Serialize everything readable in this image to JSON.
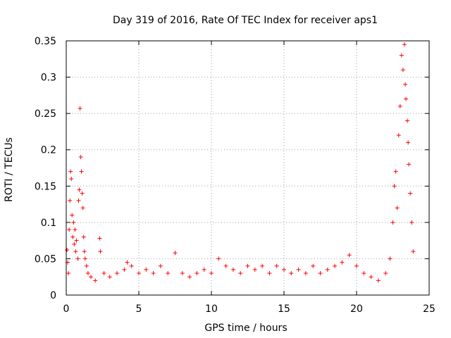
{
  "chart_data": {
    "type": "scatter",
    "title": "Day 319 of 2016, Rate Of TEC Index for receiver aps1",
    "xlabel": "GPS time / hours",
    "ylabel": "ROTI / TECUs",
    "xlim": [
      0,
      25
    ],
    "ylim": [
      0,
      0.35
    ],
    "xticks": [
      "0",
      "5",
      "10",
      "15",
      "20",
      "25"
    ],
    "yticks": [
      "0",
      "0.05",
      "0.1",
      "0.15",
      "0.2",
      "0.25",
      "0.3",
      "0.35"
    ],
    "grid": true,
    "marker": "+",
    "color": "#ff0000",
    "series": [
      {
        "values": [
          [
            0.05,
            0.062
          ],
          [
            0.1,
            0.045
          ],
          [
            0.15,
            0.03
          ],
          [
            0.2,
            0.09
          ],
          [
            0.25,
            0.13
          ],
          [
            0.3,
            0.17
          ],
          [
            0.35,
            0.16
          ],
          [
            0.4,
            0.11
          ],
          [
            0.45,
            0.08
          ],
          [
            0.5,
            0.1
          ],
          [
            0.55,
            0.07
          ],
          [
            0.6,
            0.09
          ],
          [
            0.65,
            0.06
          ],
          [
            0.7,
            0.075
          ],
          [
            0.8,
            0.05
          ],
          [
            0.85,
            0.13
          ],
          [
            0.9,
            0.145
          ],
          [
            0.95,
            0.257
          ],
          [
            1.0,
            0.19
          ],
          [
            1.05,
            0.17
          ],
          [
            1.1,
            0.14
          ],
          [
            1.15,
            0.12
          ],
          [
            1.2,
            0.08
          ],
          [
            1.25,
            0.06
          ],
          [
            1.3,
            0.05
          ],
          [
            1.4,
            0.04
          ],
          [
            1.5,
            0.03
          ],
          [
            1.7,
            0.025
          ],
          [
            2.0,
            0.02
          ],
          [
            2.3,
            0.078
          ],
          [
            2.35,
            0.06
          ],
          [
            2.6,
            0.03
          ],
          [
            3.0,
            0.025
          ],
          [
            3.5,
            0.03
          ],
          [
            4.0,
            0.035
          ],
          [
            4.2,
            0.045
          ],
          [
            4.5,
            0.04
          ],
          [
            5.0,
            0.03
          ],
          [
            5.5,
            0.035
          ],
          [
            6.0,
            0.03
          ],
          [
            6.5,
            0.04
          ],
          [
            7.0,
            0.03
          ],
          [
            7.5,
            0.058
          ],
          [
            8.0,
            0.03
          ],
          [
            8.5,
            0.025
          ],
          [
            9.0,
            0.03
          ],
          [
            9.5,
            0.035
          ],
          [
            10.0,
            0.03
          ],
          [
            10.5,
            0.05
          ],
          [
            11.0,
            0.04
          ],
          [
            11.5,
            0.035
          ],
          [
            12.0,
            0.03
          ],
          [
            12.5,
            0.04
          ],
          [
            13.0,
            0.035
          ],
          [
            13.5,
            0.04
          ],
          [
            14.0,
            0.03
          ],
          [
            14.5,
            0.04
          ],
          [
            15.0,
            0.035
          ],
          [
            15.5,
            0.03
          ],
          [
            16.0,
            0.035
          ],
          [
            16.5,
            0.03
          ],
          [
            17.0,
            0.04
          ],
          [
            17.5,
            0.03
          ],
          [
            18.0,
            0.035
          ],
          [
            18.5,
            0.04
          ],
          [
            19.0,
            0.045
          ],
          [
            19.5,
            0.055
          ],
          [
            20.0,
            0.04
          ],
          [
            20.5,
            0.03
          ],
          [
            21.0,
            0.025
          ],
          [
            21.5,
            0.02
          ],
          [
            22.0,
            0.03
          ],
          [
            22.3,
            0.05
          ],
          [
            22.5,
            0.1
          ],
          [
            22.6,
            0.15
          ],
          [
            22.7,
            0.17
          ],
          [
            22.8,
            0.12
          ],
          [
            22.9,
            0.22
          ],
          [
            23.0,
            0.26
          ],
          [
            23.1,
            0.33
          ],
          [
            23.2,
            0.31
          ],
          [
            23.3,
            0.345
          ],
          [
            23.35,
            0.29
          ],
          [
            23.4,
            0.27
          ],
          [
            23.5,
            0.24
          ],
          [
            23.55,
            0.21
          ],
          [
            23.6,
            0.18
          ],
          [
            23.7,
            0.14
          ],
          [
            23.8,
            0.1
          ],
          [
            23.9,
            0.06
          ]
        ]
      }
    ]
  }
}
